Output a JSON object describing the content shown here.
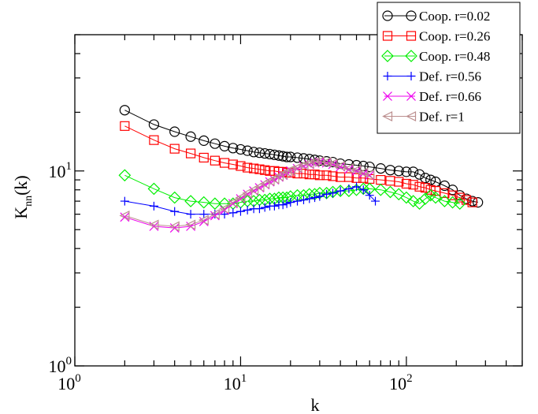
{
  "chart_data": {
    "type": "scatter",
    "title": "",
    "xlabel": "k",
    "ylabel": "K_nn(k)",
    "xscale": "log",
    "yscale": "log",
    "xlim": [
      1,
      500
    ],
    "ylim": [
      1,
      50
    ],
    "x_ticks": [
      {
        "base": "10",
        "exp": "0",
        "value": 1
      },
      {
        "base": "10",
        "exp": "1",
        "value": 10
      },
      {
        "base": "10",
        "exp": "2",
        "value": 100
      }
    ],
    "y_ticks": [
      {
        "base": "10",
        "exp": "0",
        "value": 1
      },
      {
        "base": "10",
        "exp": "1",
        "value": 10
      }
    ],
    "grid": false,
    "legend_position": "top-right",
    "series": [
      {
        "name": "Coop. r=0.02",
        "color": "#000000",
        "marker": "circle",
        "x": [
          2,
          3,
          4,
          5,
          6,
          7,
          8,
          9,
          10,
          11,
          12,
          13,
          14,
          15,
          16,
          17,
          18,
          19,
          20,
          22,
          24,
          26,
          28,
          30,
          33,
          36,
          40,
          45,
          50,
          55,
          60,
          70,
          80,
          90,
          100,
          110,
          120,
          130,
          140,
          150,
          170,
          190,
          210,
          230,
          250,
          270
        ],
        "y": [
          20.5,
          17.3,
          15.9,
          15.0,
          14.3,
          13.8,
          13.4,
          13.1,
          12.9,
          12.7,
          12.5,
          12.4,
          12.3,
          12.2,
          12.1,
          12.0,
          11.9,
          11.8,
          11.8,
          11.7,
          11.6,
          11.5,
          11.4,
          11.3,
          11.2,
          11.1,
          10.9,
          10.8,
          10.7,
          10.6,
          10.5,
          10.3,
          10.1,
          10.0,
          9.9,
          9.9,
          9.6,
          9.2,
          9.0,
          8.8,
          8.4,
          8.0,
          7.5,
          7.2,
          7.0,
          6.9
        ]
      },
      {
        "name": "Coop. r=0.26",
        "color": "#ff0000",
        "marker": "square",
        "x": [
          2,
          3,
          4,
          5,
          6,
          7,
          8,
          9,
          10,
          11,
          12,
          13,
          14,
          15,
          16,
          17,
          18,
          19,
          20,
          22,
          24,
          26,
          28,
          30,
          33,
          36,
          40,
          45,
          50,
          55,
          60,
          70,
          80,
          90,
          100,
          110,
          120,
          130,
          140,
          150,
          170,
          190,
          210,
          230,
          250
        ],
        "y": [
          17.0,
          14.4,
          13.0,
          12.3,
          11.7,
          11.3,
          11.0,
          10.8,
          10.6,
          10.4,
          10.3,
          10.2,
          10.1,
          10.0,
          10.0,
          9.9,
          9.9,
          9.8,
          9.8,
          9.7,
          9.7,
          9.6,
          9.6,
          9.5,
          9.5,
          9.4,
          9.3,
          9.3,
          9.2,
          9.2,
          9.1,
          9.0,
          8.9,
          8.8,
          8.6,
          8.5,
          8.3,
          8.2,
          8.0,
          7.9,
          7.7,
          7.5,
          7.3,
          7.1,
          6.9
        ]
      },
      {
        "name": "Coop. r=0.48",
        "color": "#00ee00",
        "marker": "diamond",
        "x": [
          2,
          3,
          4,
          5,
          6,
          7,
          8,
          9,
          10,
          11,
          12,
          13,
          14,
          15,
          16,
          17,
          18,
          19,
          20,
          22,
          24,
          26,
          28,
          30,
          33,
          36,
          40,
          45,
          50,
          55,
          60,
          70,
          80,
          90,
          100,
          110,
          120,
          130,
          140,
          150,
          170,
          190,
          210
        ],
        "y": [
          9.5,
          8.1,
          7.3,
          7.0,
          6.9,
          6.8,
          6.8,
          6.8,
          6.9,
          7.0,
          7.0,
          7.1,
          7.1,
          7.2,
          7.2,
          7.3,
          7.3,
          7.3,
          7.4,
          7.5,
          7.5,
          7.6,
          7.6,
          7.7,
          7.7,
          7.8,
          7.9,
          7.9,
          8.0,
          8.1,
          8.1,
          8.0,
          7.8,
          7.6,
          7.3,
          7.0,
          6.8,
          7.2,
          7.5,
          7.3,
          7.0,
          6.9,
          6.8
        ]
      },
      {
        "name": "Def.    r=0.56",
        "color": "#0000ff",
        "marker": "plus",
        "x": [
          2,
          3,
          4,
          5,
          6,
          7,
          8,
          9,
          10,
          11,
          12,
          13,
          14,
          15,
          16,
          17,
          18,
          19,
          20,
          22,
          24,
          26,
          28,
          30,
          33,
          36,
          40,
          45,
          50,
          55,
          60,
          65
        ],
        "y": [
          7.0,
          6.6,
          6.2,
          6.0,
          6.0,
          6.0,
          6.0,
          6.1,
          6.2,
          6.3,
          6.4,
          6.4,
          6.5,
          6.6,
          6.6,
          6.7,
          6.7,
          6.8,
          6.9,
          7.0,
          7.1,
          7.2,
          7.3,
          7.4,
          7.6,
          7.7,
          7.9,
          8.1,
          8.3,
          8.0,
          7.5,
          7.0
        ]
      },
      {
        "name": "Def.    r=0.66",
        "color": "#ee00ee",
        "marker": "x",
        "x": [
          2,
          3,
          4,
          5,
          6,
          7,
          8,
          9,
          10,
          11,
          12,
          13,
          14,
          15,
          16,
          17,
          18,
          19,
          20,
          22,
          24,
          26,
          28,
          30,
          33,
          36,
          40,
          45,
          50,
          55,
          60
        ],
        "y": [
          5.8,
          5.2,
          5.1,
          5.2,
          5.5,
          5.9,
          6.3,
          6.8,
          7.2,
          7.6,
          7.9,
          8.2,
          8.5,
          8.8,
          9.0,
          9.3,
          9.5,
          9.8,
          10.0,
          10.3,
          10.6,
          10.8,
          11.0,
          11.1,
          11.0,
          10.8,
          10.5,
          10.2,
          10.0,
          9.7,
          9.5
        ]
      },
      {
        "name": "Def.    r=1",
        "color": "#bc8f8f",
        "marker": "triangle-left",
        "x": [
          2,
          3,
          4,
          5,
          6,
          7,
          8,
          9,
          10,
          11,
          12,
          13,
          14,
          15,
          16,
          17,
          18,
          19,
          20,
          22,
          24,
          26,
          28,
          30,
          33,
          36,
          40,
          45,
          50,
          55,
          60
        ],
        "y": [
          5.9,
          5.3,
          5.2,
          5.3,
          5.6,
          6.0,
          6.4,
          6.9,
          7.3,
          7.7,
          8.0,
          8.3,
          8.6,
          8.9,
          9.1,
          9.4,
          9.6,
          9.9,
          10.1,
          10.4,
          10.7,
          10.9,
          11.1,
          11.2,
          11.1,
          10.9,
          10.6,
          10.3,
          10.1,
          9.8,
          9.6
        ]
      }
    ]
  }
}
